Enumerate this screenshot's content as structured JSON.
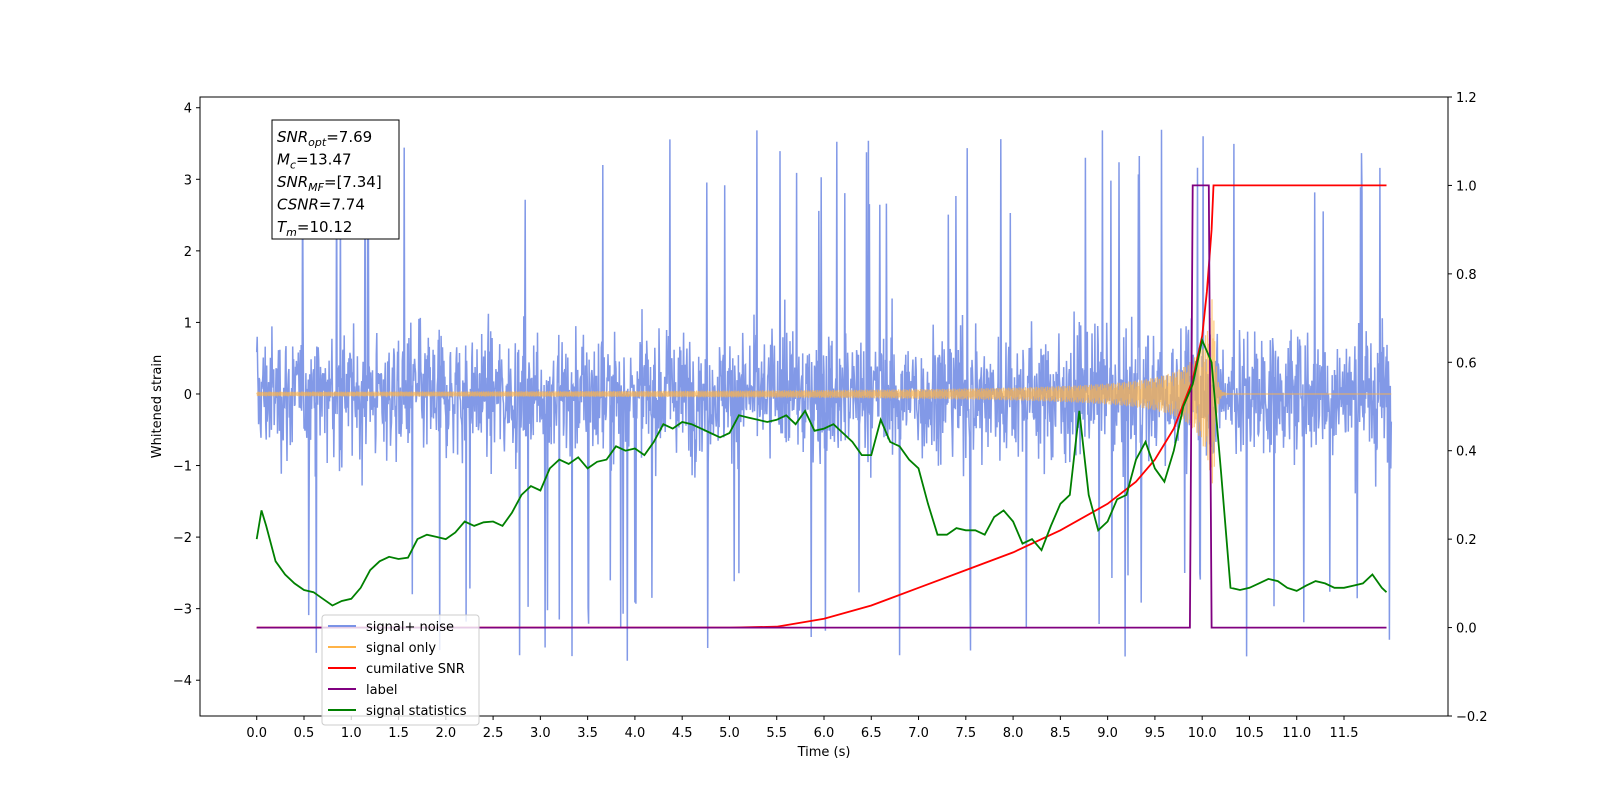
{
  "chart_data": {
    "type": "line",
    "xlabel": "Time (s)",
    "ylabel": "Whitened strain",
    "xlim": [
      -0.6,
      12.6
    ],
    "ylim": [
      -4.5,
      4.15
    ],
    "ylim_right": [
      -0.2,
      1.2
    ],
    "x_ticks": [
      0.0,
      0.5,
      1.0,
      1.5,
      2.0,
      2.5,
      3.0,
      3.5,
      4.0,
      4.5,
      5.0,
      5.5,
      6.0,
      6.5,
      7.0,
      7.5,
      8.0,
      8.5,
      9.0,
      9.5,
      10.0,
      10.5,
      11.0,
      11.5
    ],
    "x_tick_labels": [
      "0.0",
      "0.5",
      "1.0",
      "1.5",
      "2.0",
      "2.5",
      "3.0",
      "3.5",
      "4.0",
      "4.5",
      "5.0",
      "5.5",
      "6.0",
      "6.5",
      "7.0",
      "7.5",
      "8.0",
      "8.5",
      "9.0",
      "9.5",
      "10.0",
      "10.5",
      "11.0",
      "11.5"
    ],
    "y_ticks": [
      -4,
      -3,
      -2,
      -1,
      0,
      1,
      2,
      3,
      4
    ],
    "y_tick_labels": [
      "−4",
      "−3",
      "−2",
      "−1",
      "0",
      "1",
      "2",
      "3",
      "4"
    ],
    "y_ticks_right": [
      -0.2,
      0.0,
      0.2,
      0.4,
      0.6,
      0.8,
      1.0,
      1.2
    ],
    "y_tick_labels_right": [
      "−0.2",
      "0.0",
      "0.2",
      "0.4",
      "0.6",
      "0.8",
      "1.0",
      "1.2"
    ],
    "grid": false,
    "legend_position": "bottom-left",
    "annotation": {
      "lines": [
        {
          "main": "SNR",
          "sub": "opt",
          "value": "=7.69"
        },
        {
          "main": "M",
          "sub": "c",
          "value": "=13.47"
        },
        {
          "main": "SNR",
          "sub": "MF",
          "value": "=[7.34]"
        },
        {
          "main": "CSNR",
          "sub": "",
          "value": "=7.74"
        },
        {
          "main": "T",
          "sub": "m",
          "value": "=10.12"
        }
      ]
    },
    "series": [
      {
        "name": "signal+ noise",
        "axis": "left",
        "color": "#7b93e6",
        "description": "noise band, amplitude about ±1.7 with spikes to ±3.8, x from 0.0 to 12.0",
        "x_range": [
          0.0,
          12.0
        ],
        "band_amplitude": 1.7,
        "max_spike": 3.75
      },
      {
        "name": "signal only",
        "axis": "left",
        "color": "#ffb347",
        "description": "chirp waveform growing in amplitude until merger near 10.1 s",
        "x_range": [
          0.0,
          12.0
        ],
        "merger_time": 10.12,
        "peak_amplitude": 1.4
      },
      {
        "name": "cumilative SNR",
        "axis": "right",
        "color": "#ff0000",
        "x": [
          0.0,
          5.0,
          5.5,
          6.0,
          6.5,
          7.0,
          7.5,
          8.0,
          8.5,
          9.0,
          9.3,
          9.5,
          9.7,
          9.9,
          10.0,
          10.05,
          10.1,
          10.12,
          11.0,
          11.5,
          11.95
        ],
        "y": [
          0.0,
          0.0,
          0.002,
          0.02,
          0.05,
          0.09,
          0.13,
          0.17,
          0.22,
          0.28,
          0.33,
          0.38,
          0.45,
          0.56,
          0.66,
          0.76,
          0.9,
          1.0,
          1.0,
          1.0,
          1.0
        ]
      },
      {
        "name": "label",
        "axis": "right",
        "color": "#800080",
        "x": [
          0.0,
          9.87,
          9.9,
          10.07,
          10.1,
          11.95
        ],
        "y": [
          0.0,
          0.0,
          1.0,
          1.0,
          0.0,
          0.0
        ]
      },
      {
        "name": "signal statistics",
        "axis": "right",
        "color": "#008000",
        "x": [
          0.0,
          0.05,
          0.1,
          0.2,
          0.3,
          0.4,
          0.5,
          0.6,
          0.7,
          0.8,
          0.9,
          1.0,
          1.1,
          1.2,
          1.3,
          1.4,
          1.5,
          1.6,
          1.7,
          1.8,
          1.9,
          2.0,
          2.1,
          2.2,
          2.3,
          2.4,
          2.5,
          2.6,
          2.7,
          2.8,
          2.9,
          3.0,
          3.1,
          3.2,
          3.3,
          3.4,
          3.5,
          3.6,
          3.7,
          3.8,
          3.9,
          4.0,
          4.1,
          4.2,
          4.3,
          4.4,
          4.5,
          4.6,
          4.7,
          4.8,
          4.9,
          5.0,
          5.1,
          5.2,
          5.3,
          5.4,
          5.5,
          5.6,
          5.7,
          5.8,
          5.9,
          6.0,
          6.1,
          6.2,
          6.3,
          6.4,
          6.5,
          6.6,
          6.7,
          6.8,
          6.9,
          7.0,
          7.1,
          7.2,
          7.3,
          7.4,
          7.5,
          7.6,
          7.7,
          7.8,
          7.9,
          8.0,
          8.1,
          8.2,
          8.3,
          8.4,
          8.5,
          8.6,
          8.7,
          8.8,
          8.9,
          9.0,
          9.1,
          9.2,
          9.3,
          9.4,
          9.5,
          9.6,
          9.7,
          9.8,
          9.9,
          10.0,
          10.1,
          10.2,
          10.3,
          10.4,
          10.5,
          10.6,
          10.7,
          10.8,
          10.9,
          11.0,
          11.1,
          11.2,
          11.3,
          11.4,
          11.5,
          11.6,
          11.7,
          11.8,
          11.9,
          11.95
        ],
        "y": [
          0.2,
          0.265,
          0.23,
          0.15,
          0.12,
          0.1,
          0.085,
          0.08,
          0.065,
          0.05,
          0.06,
          0.065,
          0.09,
          0.13,
          0.15,
          0.16,
          0.155,
          0.158,
          0.2,
          0.21,
          0.205,
          0.2,
          0.215,
          0.24,
          0.23,
          0.238,
          0.24,
          0.23,
          0.26,
          0.3,
          0.32,
          0.31,
          0.36,
          0.38,
          0.37,
          0.385,
          0.36,
          0.375,
          0.38,
          0.41,
          0.4,
          0.405,
          0.39,
          0.42,
          0.46,
          0.45,
          0.465,
          0.46,
          0.45,
          0.44,
          0.43,
          0.44,
          0.48,
          0.475,
          0.47,
          0.465,
          0.47,
          0.48,
          0.46,
          0.49,
          0.445,
          0.45,
          0.46,
          0.44,
          0.42,
          0.39,
          0.39,
          0.47,
          0.42,
          0.41,
          0.38,
          0.36,
          0.28,
          0.21,
          0.21,
          0.225,
          0.22,
          0.22,
          0.21,
          0.25,
          0.265,
          0.24,
          0.19,
          0.2,
          0.175,
          0.23,
          0.28,
          0.3,
          0.49,
          0.3,
          0.22,
          0.24,
          0.29,
          0.3,
          0.38,
          0.42,
          0.36,
          0.33,
          0.4,
          0.5,
          0.55,
          0.65,
          0.6,
          0.35,
          0.09,
          0.085,
          0.09,
          0.1,
          0.11,
          0.105,
          0.09,
          0.083,
          0.095,
          0.105,
          0.1,
          0.09,
          0.09,
          0.095,
          0.1,
          0.12,
          0.09,
          0.08
        ]
      }
    ]
  }
}
